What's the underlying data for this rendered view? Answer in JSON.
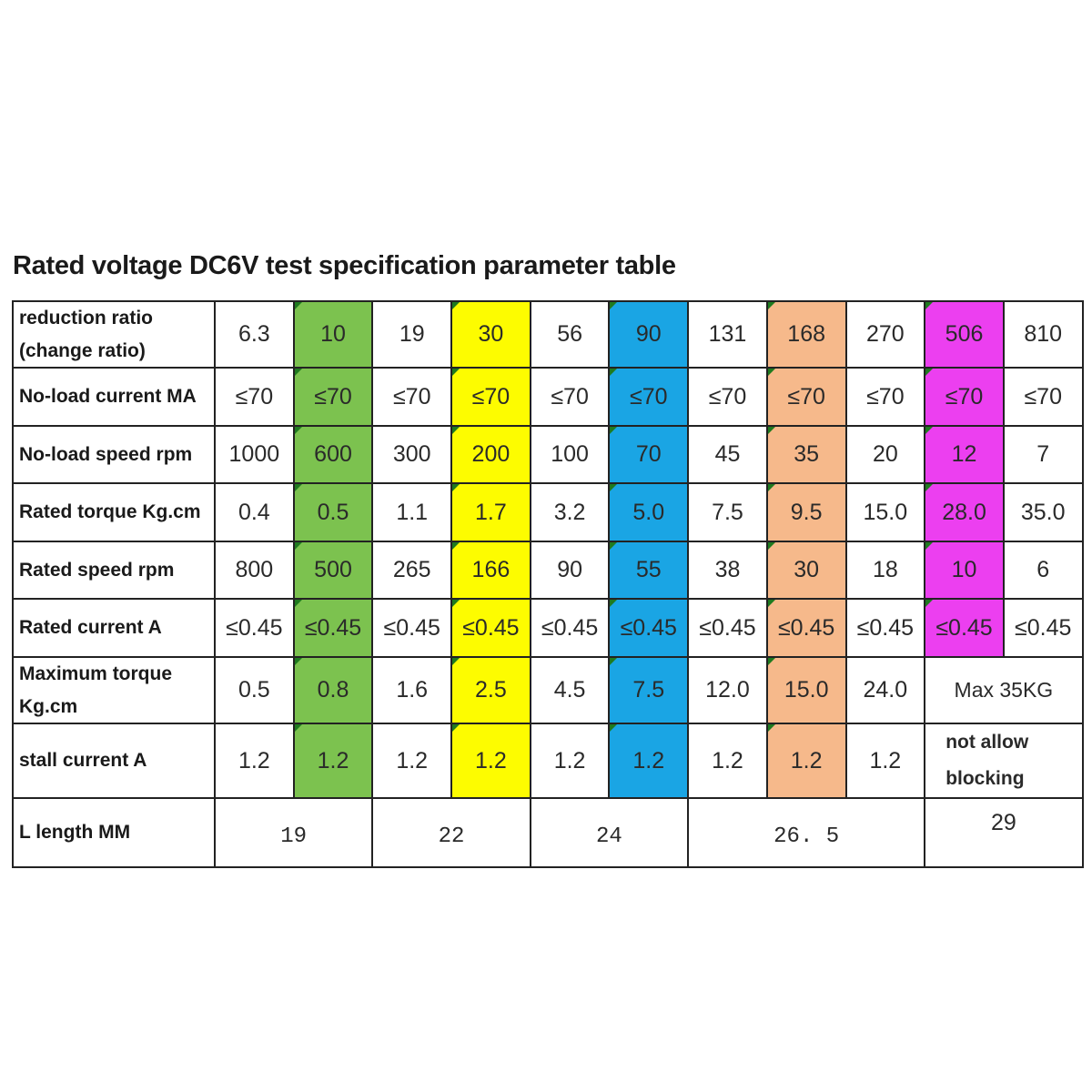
{
  "title": "Rated voltage DC6V test specification parameter table",
  "highlight_colors": {
    "1": "#7cc24f",
    "3": "#fdfc00",
    "5": "#1aa5e4",
    "7": "#f6b98b",
    "9": "#ec3ff0"
  },
  "rows": [
    {
      "label": "reduction ratio\n(change ratio)",
      "values": [
        "6.3",
        "10",
        "19",
        "30",
        "56",
        "90",
        "131",
        "168",
        "270",
        "506",
        "810"
      ]
    },
    {
      "label": "No-load current MA",
      "values": [
        "≤70",
        "≤70",
        "≤70",
        "≤70",
        "≤70",
        "≤70",
        "≤70",
        "≤70",
        "≤70",
        "≤70",
        "≤70"
      ]
    },
    {
      "label": "No-load speed rpm",
      "values": [
        "1000",
        "600",
        "300",
        "200",
        "100",
        "70",
        "45",
        "35",
        "20",
        "12",
        "7"
      ]
    },
    {
      "label": "Rated torque Kg.cm",
      "values": [
        "0.4",
        "0.5",
        "1.1",
        "1.7",
        "3.2",
        "5.0",
        "7.5",
        "9.5",
        "15.0",
        "28.0",
        "35.0"
      ]
    },
    {
      "label": "Rated speed rpm",
      "values": [
        "800",
        "500",
        "265",
        "166",
        "90",
        "55",
        "38",
        "30",
        "18",
        "10",
        "6"
      ]
    },
    {
      "label": "Rated current A",
      "values": [
        "≤0.45",
        "≤0.45",
        "≤0.45",
        "≤0.45",
        "≤0.45",
        "≤0.45",
        "≤0.45",
        "≤0.45",
        "≤0.45",
        "≤0.45",
        "≤0.45"
      ]
    },
    {
      "label": "Maximum torque\nKg.cm",
      "values": [
        "0.5",
        "0.8",
        "1.6",
        "2.5",
        "4.5",
        "7.5",
        "12.0",
        "15.0",
        "24.0"
      ],
      "merged": "Max 35KG"
    },
    {
      "label": "stall current A",
      "values": [
        "1.2",
        "1.2",
        "1.2",
        "1.2",
        "1.2",
        "1.2",
        "1.2",
        "1.2",
        "1.2"
      ],
      "merged": "not allow\nblocking"
    }
  ],
  "length_row": {
    "label": "L length MM",
    "groups": [
      {
        "value": "19",
        "span": 2
      },
      {
        "value": "22",
        "span": 2
      },
      {
        "value": "24",
        "span": 2
      },
      {
        "value": "26. 5",
        "span": 3
      },
      {
        "value": "29",
        "span": 2
      }
    ]
  }
}
